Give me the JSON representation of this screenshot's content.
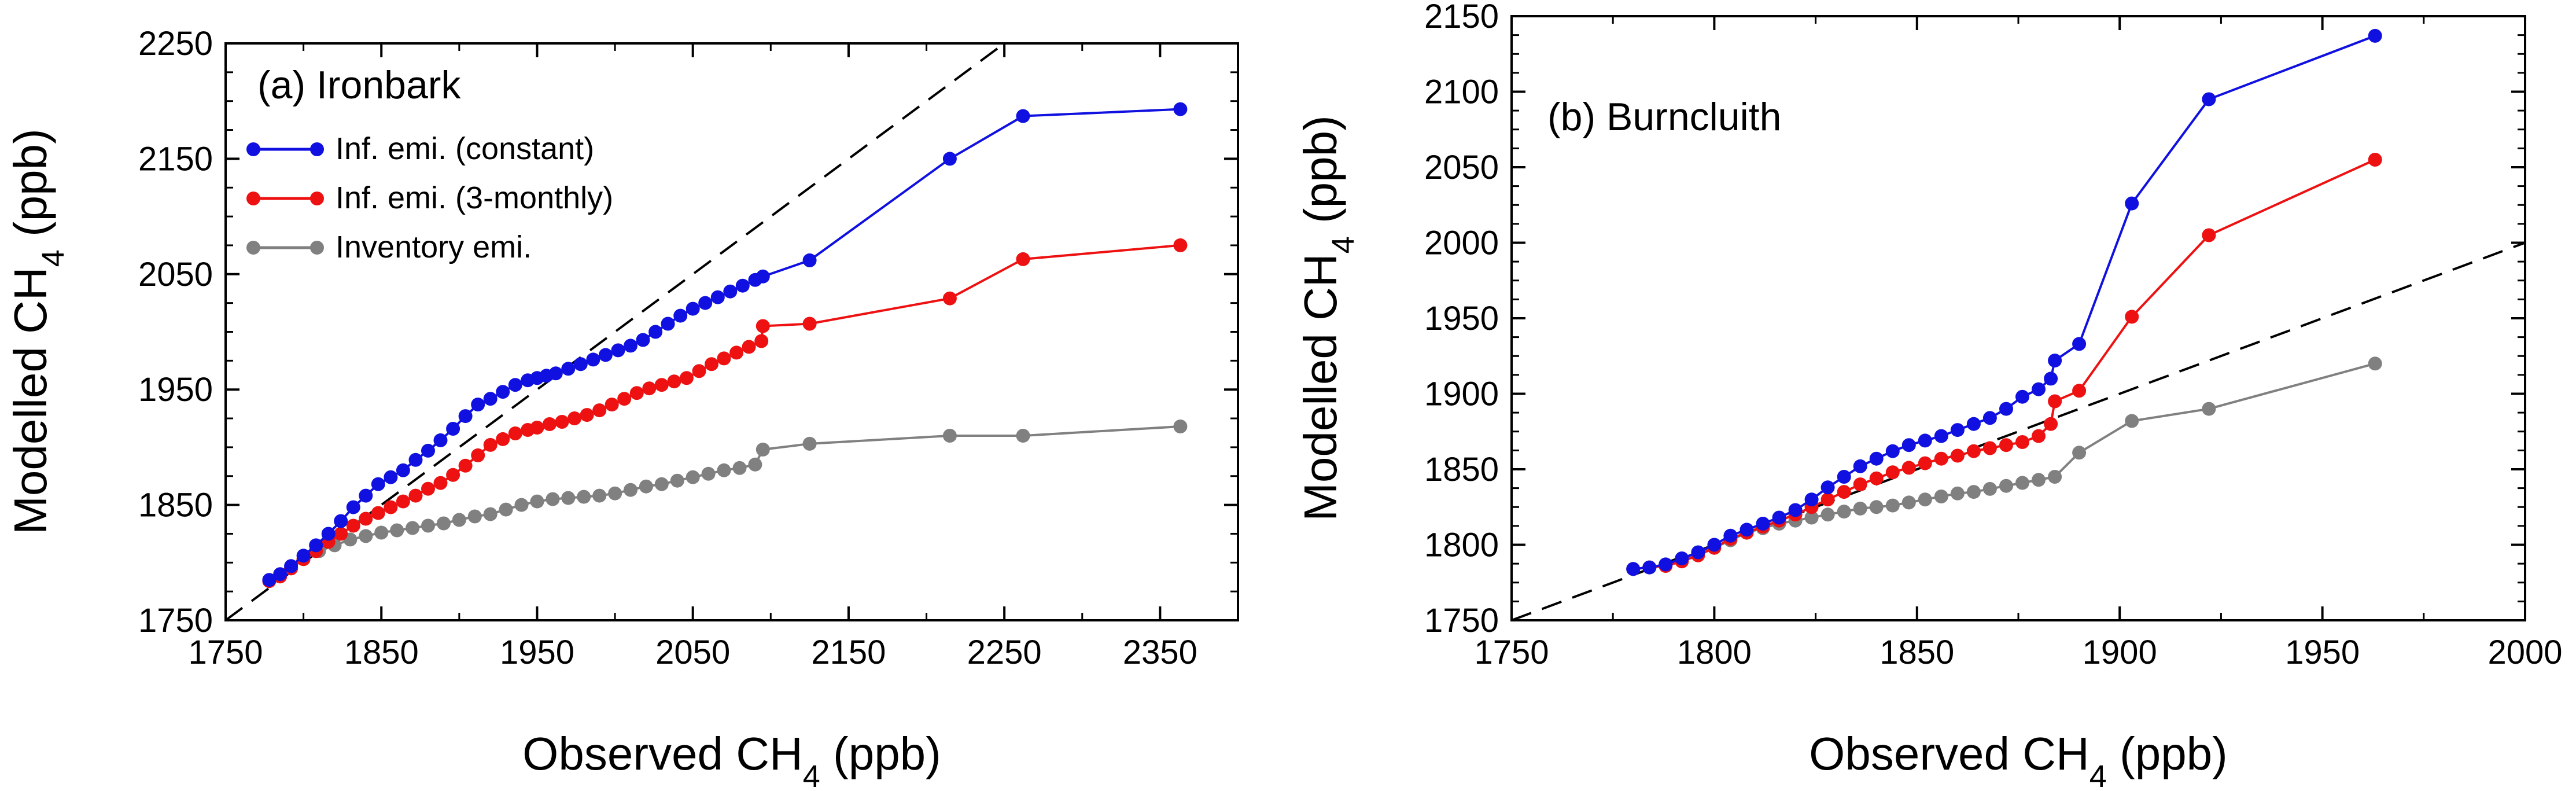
{
  "figure": {
    "legend_entries": [
      {
        "label": "Inf. emi. (constant)",
        "color": "#1010e0"
      },
      {
        "label": "Inf. emi. (3-monthly)",
        "color": "#ee1111"
      },
      {
        "label": "Inventory emi.",
        "color": "#808080"
      }
    ]
  },
  "chart_data": [
    {
      "type": "scatter",
      "panel_label": "(a) Ironbark",
      "xlabel": "Observed CH",
      "ylabel": "Modelled CH",
      "label_subscript": "4",
      "label_unit": " (ppb)",
      "xlim": [
        1750,
        2400
      ],
      "ylim": [
        1750,
        2250
      ],
      "xticks": [
        1750,
        1850,
        1950,
        2050,
        2150,
        2250,
        2350
      ],
      "yticks": [
        1750,
        1850,
        1950,
        2050,
        2150,
        2250
      ],
      "reference_line": "1:1 dashed",
      "legend_position": "top-left",
      "series": [
        {
          "name": "Inf. emi. (constant)",
          "color": "#1010e0",
          "x": [
            1778,
            1785,
            1792,
            1800,
            1808,
            1816,
            1824,
            1832,
            1840,
            1848,
            1856,
            1864,
            1872,
            1880,
            1888,
            1896,
            1904,
            1912,
            1920,
            1928,
            1936,
            1944,
            1950,
            1956,
            1962,
            1970,
            1978,
            1986,
            1994,
            2002,
            2010,
            2018,
            2026,
            2034,
            2042,
            2050,
            2058,
            2066,
            2074,
            2082,
            2090,
            2095,
            2125,
            2215,
            2262,
            2363
          ],
          "y": [
            1785,
            1790,
            1797,
            1806,
            1815,
            1825,
            1836,
            1848,
            1858,
            1868,
            1874,
            1880,
            1889,
            1897,
            1906,
            1916,
            1927,
            1937,
            1942,
            1948,
            1954,
            1958,
            1960,
            1962,
            1964,
            1968,
            1972,
            1976,
            1980,
            1984,
            1988,
            1993,
            2000,
            2007,
            2014,
            2020,
            2025,
            2030,
            2035,
            2040,
            2045,
            2048,
            2062,
            2150,
            2187,
            2193
          ]
        },
        {
          "name": "Inf. emi. (3-monthly)",
          "color": "#ee1111",
          "x": [
            1778,
            1785,
            1792,
            1800,
            1808,
            1816,
            1824,
            1832,
            1840,
            1848,
            1856,
            1864,
            1872,
            1880,
            1888,
            1896,
            1904,
            1912,
            1920,
            1928,
            1936,
            1944,
            1950,
            1958,
            1966,
            1974,
            1982,
            1990,
            1998,
            2006,
            2014,
            2022,
            2030,
            2038,
            2046,
            2054,
            2062,
            2070,
            2078,
            2086,
            2094,
            2095,
            2125,
            2215,
            2262,
            2363
          ],
          "y": [
            1784,
            1788,
            1795,
            1803,
            1810,
            1818,
            1825,
            1832,
            1838,
            1843,
            1848,
            1853,
            1858,
            1864,
            1869,
            1876,
            1884,
            1893,
            1902,
            1907,
            1912,
            1915,
            1917,
            1920,
            1922,
            1925,
            1928,
            1932,
            1937,
            1942,
            1947,
            1951,
            1954,
            1957,
            1960,
            1966,
            1972,
            1977,
            1982,
            1987,
            1992,
            2005,
            2007,
            2029,
            2063,
            2075
          ]
        },
        {
          "name": "Inventory emi.",
          "color": "#808080",
          "x": [
            1778,
            1785,
            1792,
            1800,
            1810,
            1820,
            1830,
            1840,
            1850,
            1860,
            1870,
            1880,
            1890,
            1900,
            1910,
            1920,
            1930,
            1940,
            1950,
            1960,
            1970,
            1980,
            1990,
            2000,
            2010,
            2020,
            2030,
            2040,
            2050,
            2060,
            2070,
            2080,
            2090,
            2095,
            2125,
            2215,
            2262,
            2363
          ],
          "y": [
            1784,
            1788,
            1795,
            1803,
            1810,
            1815,
            1820,
            1823,
            1826,
            1828,
            1830,
            1832,
            1834,
            1837,
            1840,
            1842,
            1846,
            1850,
            1853,
            1855,
            1856,
            1857,
            1858,
            1860,
            1863,
            1866,
            1868,
            1871,
            1874,
            1877,
            1880,
            1882,
            1885,
            1898,
            1903,
            1910,
            1910,
            1918
          ]
        }
      ]
    },
    {
      "type": "scatter",
      "panel_label": "(b) Burncluith",
      "xlabel": "Observed CH",
      "ylabel": "Modelled CH",
      "label_subscript": "4",
      "label_unit": " (ppb)",
      "xlim": [
        1750,
        2000
      ],
      "ylim": [
        1750,
        2150
      ],
      "xticks": [
        1750,
        1800,
        1850,
        1900,
        1950,
        2000
      ],
      "yticks": [
        1750,
        1800,
        1850,
        1900,
        1950,
        2000,
        2050,
        2100,
        2150
      ],
      "reference_line": "1:1 dashed",
      "series": [
        {
          "name": "Inf. emi. (constant)",
          "color": "#1010e0",
          "x": [
            1780,
            1784,
            1788,
            1792,
            1796,
            1800,
            1804,
            1808,
            1812,
            1816,
            1820,
            1824,
            1828,
            1832,
            1836,
            1840,
            1844,
            1848,
            1852,
            1856,
            1860,
            1864,
            1868,
            1872,
            1876,
            1880,
            1883,
            1884,
            1890,
            1903,
            1922,
            1963
          ],
          "y": [
            1784,
            1785,
            1787,
            1791,
            1795,
            1800,
            1806,
            1810,
            1814,
            1818,
            1823,
            1830,
            1838,
            1845,
            1852,
            1857,
            1862,
            1866,
            1869,
            1872,
            1876,
            1880,
            1884,
            1890,
            1898,
            1903,
            1910,
            1922,
            1933,
            2026,
            2095,
            2137
          ]
        },
        {
          "name": "Inf. emi. (3-monthly)",
          "color": "#ee1111",
          "x": [
            1780,
            1784,
            1788,
            1792,
            1796,
            1800,
            1804,
            1808,
            1812,
            1816,
            1820,
            1824,
            1828,
            1832,
            1836,
            1840,
            1844,
            1848,
            1852,
            1856,
            1860,
            1864,
            1868,
            1872,
            1876,
            1880,
            1883,
            1884,
            1890,
            1903,
            1922,
            1963
          ],
          "y": [
            1784,
            1785,
            1786,
            1789,
            1793,
            1798,
            1804,
            1808,
            1812,
            1816,
            1820,
            1825,
            1830,
            1835,
            1840,
            1844,
            1848,
            1851,
            1854,
            1857,
            1859,
            1862,
            1864,
            1866,
            1868,
            1872,
            1880,
            1895,
            1902,
            1951,
            2005,
            2055
          ]
        },
        {
          "name": "Inventory emi.",
          "color": "#808080",
          "x": [
            1780,
            1784,
            1788,
            1792,
            1796,
            1800,
            1804,
            1808,
            1812,
            1816,
            1820,
            1824,
            1828,
            1832,
            1836,
            1840,
            1844,
            1848,
            1852,
            1856,
            1860,
            1864,
            1868,
            1872,
            1876,
            1880,
            1884,
            1890,
            1903,
            1922,
            1963
          ],
          "y": [
            1784,
            1785,
            1787,
            1790,
            1794,
            1798,
            1803,
            1808,
            1811,
            1814,
            1816,
            1818,
            1820,
            1822,
            1824,
            1825,
            1826,
            1828,
            1830,
            1832,
            1834,
            1835,
            1837,
            1839,
            1841,
            1843,
            1845,
            1861,
            1882,
            1890,
            1920
          ]
        }
      ]
    }
  ]
}
